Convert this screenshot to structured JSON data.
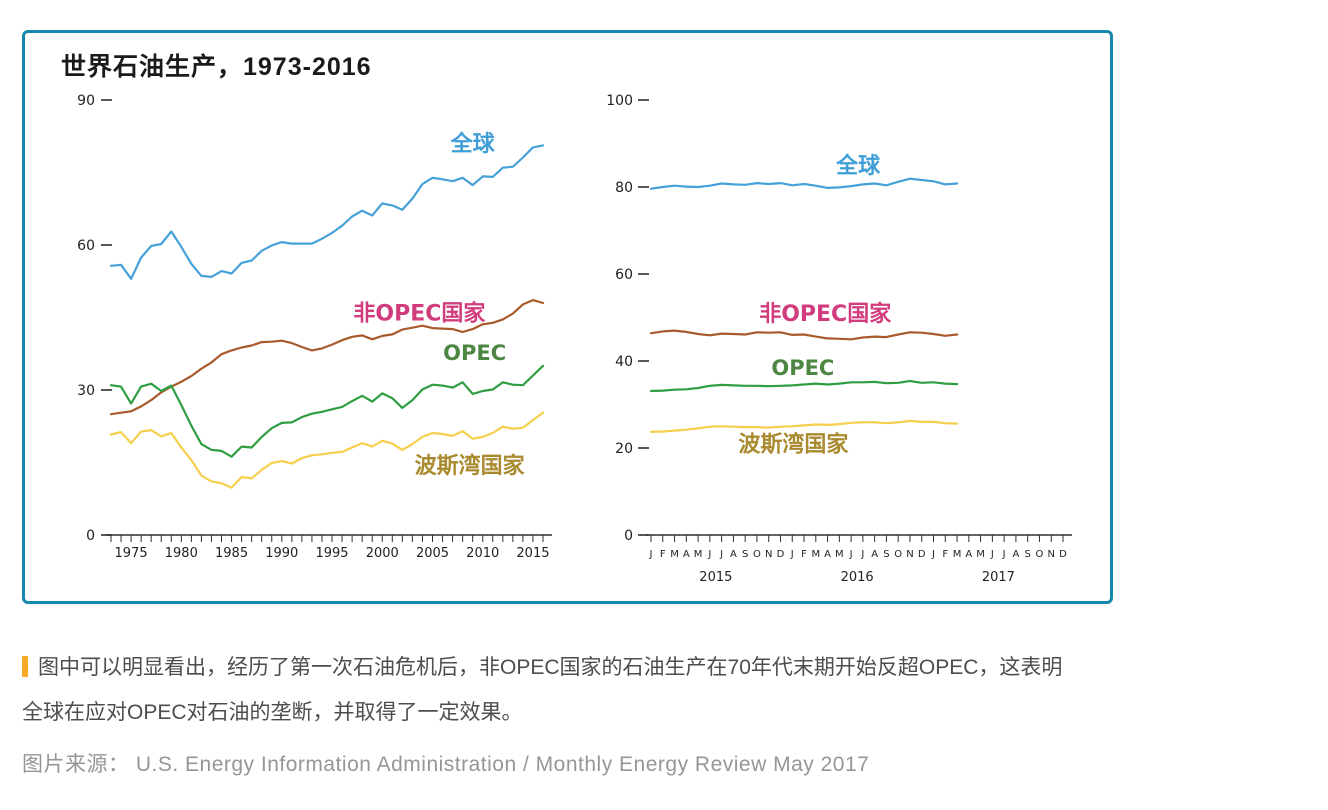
{
  "figure": {
    "title": "世界石油生产，1973-2016",
    "border_color": "#1588ab"
  },
  "chart_data": [
    {
      "name": "annual-production-chart",
      "type": "line",
      "title": "世界石油生产，1973-2016",
      "x_unit": "year",
      "x_start": 1973,
      "x_end": 2016,
      "x_count": 44,
      "ylim": [
        0,
        90
      ],
      "yticks": [
        0,
        30,
        60,
        90
      ],
      "grid": false,
      "legend": "inline-labels",
      "xticks": [
        {
          "index": 2,
          "label": "1975"
        },
        {
          "index": 7,
          "label": "1980"
        },
        {
          "index": 12,
          "label": "1985"
        },
        {
          "index": 17,
          "label": "1990"
        },
        {
          "index": 22,
          "label": "1995"
        },
        {
          "index": 27,
          "label": "2000"
        },
        {
          "index": 32,
          "label": "2005"
        },
        {
          "index": 37,
          "label": "2010"
        },
        {
          "index": 42,
          "label": "2015"
        }
      ],
      "series": [
        {
          "name": "全球",
          "color": "#45a1d8",
          "values": [
            55.7,
            55.9,
            53.0,
            57.4,
            59.8,
            60.2,
            62.8,
            59.6,
            56.1,
            53.6,
            53.4,
            54.6,
            54.1,
            56.3,
            56.8,
            58.8,
            59.9,
            60.6,
            60.3,
            60.3,
            60.3,
            61.3,
            62.5,
            64.0,
            65.9,
            67.1,
            66.1,
            68.6,
            68.2,
            67.3,
            69.6,
            72.6,
            73.9,
            73.6,
            73.2,
            73.9,
            72.4,
            74.2,
            74.1,
            76.0,
            76.2,
            78.1,
            80.2,
            80.6
          ],
          "label": {
            "text": "全球",
            "x": 36.0,
            "v": 81,
            "color": "#3f9ed6",
            "size": 22
          }
        },
        {
          "name": "非OPEC国家",
          "color": "#a85a2b",
          "values": [
            25.0,
            25.3,
            25.6,
            26.6,
            27.9,
            29.5,
            30.7,
            31.7,
            32.9,
            34.4,
            35.7,
            37.4,
            38.2,
            38.8,
            39.2,
            39.9,
            40.0,
            40.2,
            39.7,
            38.9,
            38.2,
            38.6,
            39.4,
            40.3,
            41.0,
            41.3,
            40.5,
            41.2,
            41.5,
            42.5,
            42.9,
            43.3,
            42.8,
            42.7,
            42.6,
            42.0,
            42.6,
            43.6,
            43.9,
            44.6,
            45.8,
            47.7,
            48.6,
            48.0
          ],
          "label": {
            "text": "非OPEC国家",
            "x": 30.7,
            "v": 46,
            "color": "#d13c7c",
            "size": 22
          }
        },
        {
          "name": "OPEC",
          "color": "#2f9e42",
          "values": [
            31.0,
            30.7,
            27.2,
            30.7,
            31.3,
            29.8,
            30.9,
            26.9,
            22.6,
            18.8,
            17.6,
            17.4,
            16.2,
            18.3,
            18.1,
            20.3,
            22.1,
            23.2,
            23.3,
            24.4,
            25.1,
            25.5,
            26.0,
            26.5,
            27.7,
            28.8,
            27.6,
            29.3,
            28.3,
            26.3,
            27.9,
            30.1,
            31.1,
            30.9,
            30.5,
            31.6,
            29.2,
            29.8,
            30.1,
            31.6,
            31.1,
            31.0,
            33.0,
            35.0
          ],
          "label": {
            "text": "OPEC",
            "x": 36.2,
            "v": 37.7,
            "color": "#4e8743",
            "size": 21
          }
        },
        {
          "name": "波斯湾国家",
          "color": "#f6cf4c",
          "values": [
            20.8,
            21.3,
            19.0,
            21.4,
            21.7,
            20.4,
            21.1,
            18.1,
            15.5,
            12.3,
            11.1,
            10.7,
            9.8,
            12.0,
            11.7,
            13.5,
            14.9,
            15.3,
            14.8,
            15.9,
            16.5,
            16.7,
            17.0,
            17.2,
            18.1,
            19.0,
            18.3,
            19.5,
            18.9,
            17.6,
            18.8,
            20.3,
            21.1,
            20.9,
            20.5,
            21.5,
            19.9,
            20.3,
            21.1,
            22.4,
            22.0,
            22.2,
            23.8,
            25.3
          ],
          "label": {
            "text": "波斯湾国家",
            "x": 35.7,
            "v": 14.4,
            "color": "#a98a2f",
            "size": 22
          }
        }
      ]
    },
    {
      "name": "monthly-production-chart",
      "type": "line",
      "x_unit": "month",
      "x_count": 36,
      "month_letters": [
        "J",
        "F",
        "M",
        "A",
        "M",
        "J",
        "J",
        "A",
        "S",
        "O",
        "N",
        "D"
      ],
      "year_labels": [
        {
          "index": 5,
          "label": "2015"
        },
        {
          "index": 17,
          "label": "2016"
        },
        {
          "index": 29,
          "label": "2017"
        }
      ],
      "ylim": [
        0,
        100
      ],
      "yticks": [
        0,
        20,
        40,
        60,
        80,
        100
      ],
      "grid": false,
      "legend": "inline-labels",
      "series": [
        {
          "name": "全球",
          "color": "#45a1d8",
          "values": [
            79.6,
            80.0,
            80.3,
            80.1,
            80.0,
            80.3,
            80.8,
            80.6,
            80.5,
            80.9,
            80.7,
            80.9,
            80.4,
            80.7,
            80.3,
            79.8,
            79.9,
            80.2,
            80.6,
            80.8,
            80.4,
            81.2,
            81.9,
            81.6,
            81.3,
            80.6,
            80.8
          ],
          "label": {
            "text": "全球",
            "x": 17.6,
            "v": 85,
            "color": "#3f9ed6",
            "size": 22
          }
        },
        {
          "name": "非OPEC国家",
          "color": "#a85a2b",
          "values": [
            46.4,
            46.8,
            47.0,
            46.7,
            46.2,
            45.9,
            46.3,
            46.2,
            46.1,
            46.6,
            46.5,
            46.6,
            46.0,
            46.1,
            45.6,
            45.2,
            45.1,
            45.0,
            45.4,
            45.6,
            45.5,
            46.1,
            46.6,
            46.5,
            46.2,
            45.8,
            46.1
          ],
          "label": {
            "text": "非OPEC国家",
            "x": 14.8,
            "v": 51,
            "color": "#d13c7c",
            "size": 22
          }
        },
        {
          "name": "OPEC",
          "color": "#2f9e42",
          "values": [
            33.1,
            33.2,
            33.4,
            33.5,
            33.8,
            34.3,
            34.5,
            34.4,
            34.3,
            34.3,
            34.2,
            34.3,
            34.4,
            34.6,
            34.8,
            34.6,
            34.8,
            35.1,
            35.1,
            35.2,
            34.9,
            35.0,
            35.4,
            35.0,
            35.1,
            34.8,
            34.7
          ],
          "label": {
            "text": "OPEC",
            "x": 12.9,
            "v": 38.5,
            "color": "#4e8743",
            "size": 21
          }
        },
        {
          "name": "波斯湾国家",
          "color": "#f6cf4c",
          "values": [
            23.7,
            23.8,
            24.0,
            24.2,
            24.5,
            24.9,
            25.0,
            24.9,
            24.8,
            24.8,
            24.7,
            24.9,
            25.0,
            25.2,
            25.4,
            25.3,
            25.5,
            25.8,
            25.9,
            25.9,
            25.7,
            25.9,
            26.2,
            26.0,
            26.0,
            25.7,
            25.6
          ],
          "label": {
            "text": "波斯湾国家",
            "x": 12.1,
            "v": 21,
            "color": "#a98a2f",
            "size": 22
          }
        }
      ]
    }
  ],
  "caption": {
    "marker_color": "#f7a824",
    "line1": "图中可以明显看出，经历了第一次石油危机后，非OPEC国家的石油生产在70年代末期开始反超OPEC，这表明",
    "line2": "全球在应对OPEC对石油的垄断，并取得了一定效果。"
  },
  "source": {
    "text": "图片来源： U.S. Energy Information Administration / Monthly Energy Review May 2017"
  }
}
